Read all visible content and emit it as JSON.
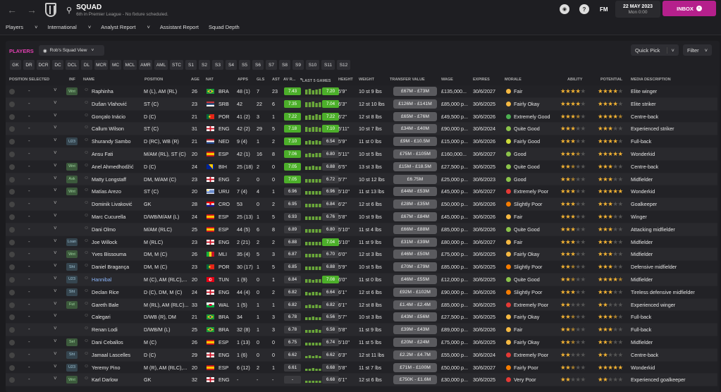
{
  "header": {
    "title": "SQUAD",
    "subtitle": "6th in Premier League - No fixture scheduled.",
    "fm_label": "FM",
    "date": "22 MAY 2023",
    "day_time": "Mon 0:00",
    "inbox": "INBOX"
  },
  "subnav": [
    "Players",
    "International",
    "Analyst Report",
    "Assistant Report",
    "Squad Depth"
  ],
  "toolbar": {
    "players_label": "PLAYERS",
    "view": "Rob's Squad View",
    "quick_pick": "Quick Pick",
    "filter": "Filter"
  },
  "positions": [
    "GK",
    "DR",
    "DCR",
    "DC",
    "DCL",
    "DL",
    "MCR",
    "MC",
    "MCL",
    "AMR",
    "AML",
    "STC",
    "S1",
    "S2",
    "S3",
    "S4",
    "S5",
    "S6",
    "S7",
    "S8",
    "S9",
    "S10",
    "S11",
    "S12"
  ],
  "columns": {
    "pos_selected": "POSITION SELECTED",
    "inf": "INF",
    "name": "NAME",
    "position": "POSITION",
    "age": "AGE",
    "nat": "NAT",
    "apps": "APPS",
    "gls": "GLS",
    "ast": "AST",
    "avr": "AV R...",
    "last5": "LAST 5 GAMES",
    "height": "HEIGHT",
    "weight": "WEIGHT",
    "transfer_value": "TRANSFER VALUE",
    "wage": "WAGE",
    "expires": "EXPIRES",
    "morale": "MORALE",
    "ability": "ABILITY",
    "potential": "POTENTIAL",
    "media_description": "MEDIA DESCRIPTION"
  },
  "colors": {
    "accent": "#b5208c",
    "rating_green": "#4caf2a",
    "rating_gray": "#3a3a3e",
    "star": "#f2b233"
  },
  "players": [
    {
      "sel": "-",
      "inf": "Wnt",
      "name": "Raphinha",
      "pos": "M (L), AM (RL)",
      "age": "26",
      "nat": "BRA",
      "flag": "bra",
      "apps": "48 (1)",
      "gls": "7",
      "ast": "23",
      "avr": "7.43",
      "bars": [
        0.8,
        0.9,
        0.7,
        0.8,
        0.9
      ],
      "l5": "7.20",
      "ht": "5'9\"",
      "wt": "10 st 9 lbs",
      "tv": "£67M - £73M",
      "wage": "£135,000...",
      "exp": "30/6/2027",
      "mor": "Fair",
      "mc": "#f5b942",
      "abil": 4,
      "pot": 4,
      "desc": "Elite winger"
    },
    {
      "sel": "-",
      "inf": "",
      "name": "Dušan Vlahović",
      "pos": "ST (C)",
      "age": "23",
      "nat": "SRB",
      "flag": "srb",
      "apps": "42",
      "gls": "22",
      "ast": "6",
      "avr": "7.35",
      "bars": [
        0.8,
        0.8,
        0.9,
        0.7,
        0.8
      ],
      "l5": "7.04",
      "ht": "6'3\"",
      "wt": "12 st 10 lbs",
      "tv": "£126M - £141M",
      "wage": "£85,000 p...",
      "exp": "30/6/2025",
      "mor": "Fairly Okay",
      "mc": "#f5b942",
      "abil": 4,
      "pot": 4,
      "desc": "Elite striker"
    },
    {
      "sel": "-",
      "inf": "",
      "name": "Gonçalo Inácio",
      "pos": "D (C)",
      "age": "21",
      "nat": "POR",
      "flag": "por",
      "apps": "41 (2)",
      "gls": "3",
      "ast": "1",
      "avr": "7.22",
      "bars": [
        0.7,
        0.8,
        0.7,
        0.9,
        0.8
      ],
      "l5": "7.22",
      "ht": "6'2\"",
      "wt": "12 st 8 lbs",
      "tv": "£65M - £76M",
      "wage": "£49,500 p...",
      "exp": "30/6/2026",
      "mor": "Extremely Good",
      "mc": "#4caf50",
      "abil": 3.5,
      "pot": 4.5,
      "desc": "Centre-back"
    },
    {
      "sel": "-",
      "inf": "",
      "name": "Callum Wilson",
      "pos": "ST (C)",
      "age": "31",
      "nat": "ENG",
      "flag": "eng",
      "apps": "42 (2)",
      "gls": "29",
      "ast": "5",
      "avr": "7.18",
      "bars": [
        0.8,
        0.7,
        0.8,
        0.8,
        0.7
      ],
      "l5": "7.10",
      "ht": "5'11\"",
      "wt": "10 st 7 lbs",
      "tv": "£34M - £40M",
      "wage": "£90,000 p...",
      "exp": "30/6/2024",
      "mor": "Quite Good",
      "mc": "#8bc34a",
      "abil": 3,
      "pot": 3,
      "desc": "Experienced striker"
    },
    {
      "sel": "-",
      "inf": "U23",
      "name": "Shurandy Sambo",
      "pos": "D (RC), WB (R)",
      "age": "21",
      "nat": "NED",
      "flag": "ned",
      "apps": "9 (4)",
      "gls": "1",
      "ast": "2",
      "avr": "7.10",
      "bars": [
        0.6,
        0.7,
        0.6,
        0.7,
        0.6
      ],
      "l5": "6.54",
      "ht": "5'9\"",
      "wt": "11 st 0 lbs",
      "tv": "£9M - £10.5M",
      "wage": "£15,000 p...",
      "exp": "30/6/2026",
      "mor": "Fairly Good",
      "mc": "#cddc39",
      "abil": 3,
      "pot": 4,
      "desc": "Full-back"
    },
    {
      "sel": "-",
      "inf": "",
      "name": "Ansu Fati",
      "pos": "M/AM (RL), ST (C)",
      "age": "20",
      "nat": "ESP",
      "flag": "esp",
      "apps": "42 (1)",
      "gls": "16",
      "ast": "8",
      "avr": "7.06",
      "bars": [
        0.6,
        0.7,
        0.6,
        0.7,
        0.7
      ],
      "l5": "6.80",
      "ht": "5'11\"",
      "wt": "10 st 5 lbs",
      "tv": "£75M - £105M",
      "wage": "£160,000...",
      "exp": "30/6/2027",
      "mor": "Good",
      "mc": "#8bc34a",
      "abil": 3.5,
      "pot": 5,
      "desc": "Wonderkid"
    },
    {
      "sel": "-",
      "inf": "Wnt",
      "name": "Anel Ahmedhodžić",
      "pos": "D (C)",
      "age": "24",
      "nat": "BIH",
      "flag": "bih",
      "apps": "25 (18)",
      "gls": "2",
      "ast": "0",
      "avr": "7.05",
      "bars": [
        0.6,
        0.6,
        0.7,
        0.6,
        0.6
      ],
      "l5": "6.88",
      "ht": "6'5\"",
      "wt": "13 st 3 lbs",
      "tv": "£15M - £18.5M",
      "wage": "£27,500 p...",
      "exp": "30/6/2025",
      "mor": "Quite Good",
      "mc": "#8bc34a",
      "abil": 2.5,
      "pot": 3,
      "desc": "Centre-back"
    },
    {
      "sel": "-",
      "inf": "Ask",
      "name": "Matty Longstaff",
      "pos": "DM, M/AM (C)",
      "age": "23",
      "nat": "ENG",
      "flag": "eng",
      "apps": "2",
      "gls": "0",
      "ast": "0",
      "avr": "7.05",
      "bars": [
        0.6,
        0.6,
        0.6,
        0.6,
        0.6
      ],
      "l5": "6.72",
      "ht": "5'7\"",
      "wt": "10 st 12 lbs",
      "tv": "£6.75M",
      "wage": "£25,000 p...",
      "exp": "30/6/2023",
      "mor": "Good",
      "mc": "#8bc34a",
      "abil": 2.5,
      "pot": 3,
      "desc": "Midfielder"
    },
    {
      "sel": "-",
      "inf": "Wnt",
      "name": "Matías Arezo",
      "pos": "ST (C)",
      "age": "20",
      "nat": "URU",
      "flag": "uru",
      "apps": "7 (4)",
      "gls": "4",
      "ast": "1",
      "avr": "6.96",
      "bars": [
        0.5,
        0.6,
        0.6,
        0.6,
        0.5
      ],
      "l5": "6.96",
      "ht": "5'10\"",
      "wt": "11 st 13 lbs",
      "tv": "£44M - £53M",
      "wage": "£45,000 p...",
      "exp": "30/6/2027",
      "mor": "Extremely Poor",
      "mc": "#e53935",
      "abil": 3,
      "pot": 5,
      "desc": "Wonderkid"
    },
    {
      "sel": "-",
      "inf": "",
      "name": "Dominik Livaković",
      "pos": "GK",
      "age": "28",
      "nat": "CRO",
      "flag": "cro",
      "apps": "53",
      "gls": "0",
      "ast": "2",
      "avr": "6.95",
      "bars": [
        0.5,
        0.6,
        0.5,
        0.6,
        0.6
      ],
      "l5": "6.84",
      "ht": "6'2\"",
      "wt": "12 st 6 lbs",
      "tv": "£28M - £35M",
      "wage": "£50,000 p...",
      "exp": "30/6/2026",
      "mor": "Slightly Poor",
      "mc": "#f57c00",
      "abil": 3,
      "pot": 3,
      "desc": "Goalkeeper"
    },
    {
      "sel": "-",
      "inf": "",
      "name": "Marc Cucurella",
      "pos": "D/WB/M/AM (L)",
      "age": "24",
      "nat": "ESP",
      "flag": "esp",
      "apps": "25 (13)",
      "gls": "1",
      "ast": "5",
      "avr": "6.93",
      "bars": [
        0.5,
        0.5,
        0.6,
        0.5,
        0.6
      ],
      "l5": "6.76",
      "ht": "5'8\"",
      "wt": "10 st 9 lbs",
      "tv": "£67M - £84M",
      "wage": "£45,000 p...",
      "exp": "30/6/2026",
      "mor": "Fair",
      "mc": "#f5b942",
      "abil": 3,
      "pot": 3,
      "desc": "Winger"
    },
    {
      "sel": "-",
      "inf": "",
      "name": "Dani Olmo",
      "pos": "M/AM (RLC)",
      "age": "25",
      "nat": "ESP",
      "flag": "esp",
      "apps": "44 (5)",
      "gls": "6",
      "ast": "8",
      "avr": "6.89",
      "bars": [
        0.5,
        0.5,
        0.5,
        0.6,
        0.5
      ],
      "l5": "6.80",
      "ht": "5'10\"",
      "wt": "11 st 4 lbs",
      "tv": "£66M - £88M",
      "wage": "£85,000 p...",
      "exp": "30/6/2026",
      "mor": "Quite Good",
      "mc": "#8bc34a",
      "abil": 3,
      "pot": 3,
      "desc": "Attacking midfielder"
    },
    {
      "sel": "-",
      "inf": "Loan",
      "name": "Joe Willock",
      "pos": "M (RLC)",
      "age": "23",
      "nat": "ENG",
      "flag": "eng",
      "apps": "2 (21)",
      "gls": "2",
      "ast": "2",
      "avr": "6.88",
      "bars": [
        0.5,
        0.5,
        0.5,
        0.5,
        0.6
      ],
      "l5": "7.04",
      "ht": "5'10\"",
      "wt": "11 st 9 lbs",
      "tv": "£31M - £39M",
      "wage": "£80,000 p...",
      "exp": "30/6/2027",
      "mor": "Fair",
      "mc": "#f5b942",
      "abil": 3,
      "pot": 3,
      "desc": "Midfielder"
    },
    {
      "sel": "-",
      "inf": "Wnt",
      "name": "Yves Bissouma",
      "pos": "DM, M (C)",
      "age": "26",
      "nat": "MLI",
      "flag": "mli",
      "apps": "35 (4)",
      "gls": "5",
      "ast": "3",
      "avr": "6.87",
      "bars": [
        0.5,
        0.5,
        0.5,
        0.5,
        0.5
      ],
      "l5": "6.70",
      "ht": "6'0\"",
      "wt": "12 st 3 lbs",
      "tv": "£46M - £50M",
      "wage": "£75,000 p...",
      "exp": "30/6/2025",
      "mor": "Fairly Okay",
      "mc": "#f5b942",
      "abil": 3,
      "pot": 3,
      "desc": "Midfielder"
    },
    {
      "sel": "-",
      "inf": "Sht",
      "name": "Daniel Bragança",
      "pos": "DM, M (C)",
      "age": "23",
      "nat": "POR",
      "flag": "por",
      "apps": "30 (17)",
      "gls": "1",
      "ast": "5",
      "avr": "6.85",
      "bars": [
        0.5,
        0.5,
        0.5,
        0.5,
        0.5
      ],
      "l5": "6.88",
      "ht": "5'9\"",
      "wt": "10 st 5 lbs",
      "tv": "£70M - £79M",
      "wage": "£85,000 p...",
      "exp": "30/6/2025",
      "mor": "Slightly Poor",
      "mc": "#f57c00",
      "abil": 2.5,
      "pot": 3,
      "desc": "Defensive midfielder"
    },
    {
      "sel": "-",
      "inf": "U23",
      "name": "Hannibal",
      "pos": "M (C), AM (RLC),...",
      "age": "20",
      "nat": "TUN",
      "flag": "tun",
      "apps": "1 (9)",
      "gls": "0",
      "ast": "1",
      "avr": "6.84",
      "bars": [
        0.5,
        0.5,
        0.4,
        0.5,
        0.5
      ],
      "l5": "7.08",
      "ht": "6'0\"",
      "wt": "11 st 0 lbs",
      "tv": "£46M - £55M",
      "wage": "£12,000 p...",
      "exp": "30/6/2025",
      "mor": "Quite Good",
      "mc": "#8bc34a",
      "abil": 2.5,
      "pot": 4.5,
      "desc": "Midfielder",
      "hl": true
    },
    {
      "sel": "-",
      "inf": "Sht",
      "name": "Declan Rice",
      "pos": "D (C), DM, M (C)",
      "age": "24",
      "nat": "ENG",
      "flag": "eng",
      "apps": "44 (4)",
      "gls": "0",
      "ast": "2",
      "avr": "6.82",
      "bars": [
        0.5,
        0.4,
        0.5,
        0.5,
        0.4
      ],
      "l5": "6.64",
      "ht": "6'1\"",
      "wt": "12 st 6 lbs",
      "tv": "£92M - £102M",
      "wage": "£90,000 p...",
      "exp": "30/6/2026",
      "mor": "Slightly Poor",
      "mc": "#f57c00",
      "abil": 3,
      "pot": 3,
      "desc": "Tireless defensive midfielder"
    },
    {
      "sel": "-",
      "inf": "Fut",
      "name": "Gareth Bale",
      "pos": "M (RL), AM (RLC)...",
      "age": "33",
      "nat": "WAL",
      "flag": "wal",
      "apps": "1 (5)",
      "gls": "1",
      "ast": "1",
      "avr": "6.82",
      "bars": [
        0.4,
        0.5,
        0.4,
        0.5,
        0.4
      ],
      "l5": "6.82",
      "ht": "6'1\"",
      "wt": "12 st 8 lbs",
      "tv": "£1.4M - £2.4M",
      "wage": "£85,000 p...",
      "exp": "30/6/2025",
      "mor": "Extremely Poor",
      "mc": "#e53935",
      "abil": 2,
      "pot": 2,
      "desc": "Experienced winger"
    },
    {
      "sel": "-",
      "inf": "",
      "name": "Calegari",
      "pos": "D/WB (R), DM",
      "age": "21",
      "nat": "BRA",
      "flag": "bra",
      "apps": "34",
      "gls": "1",
      "ast": "3",
      "avr": "6.78",
      "bars": [
        0.4,
        0.4,
        0.5,
        0.4,
        0.4
      ],
      "l5": "6.56",
      "ht": "5'7\"",
      "wt": "10 st 3 lbs",
      "tv": "£43M - £56M",
      "wage": "£27,500 p...",
      "exp": "30/6/2025",
      "mor": "Fairly Okay",
      "mc": "#f5b942",
      "abil": 2.5,
      "pot": 3.5,
      "desc": "Full-back"
    },
    {
      "sel": "-",
      "inf": "",
      "name": "Renan Lodi",
      "pos": "D/WB/M (L)",
      "age": "25",
      "nat": "BRA",
      "flag": "bra",
      "apps": "32 (8)",
      "gls": "1",
      "ast": "3",
      "avr": "6.78",
      "bars": [
        0.4,
        0.4,
        0.4,
        0.5,
        0.4
      ],
      "l5": "6.58",
      "ht": "5'8\"",
      "wt": "11 st 9 lbs",
      "tv": "£39M - £43M",
      "wage": "£89,000 p...",
      "exp": "30/6/2026",
      "mor": "Fair",
      "mc": "#f5b942",
      "abil": 2.5,
      "pot": 3,
      "desc": "Full-back"
    },
    {
      "sel": "-",
      "inf": "Sel",
      "name": "Dani Ceballos",
      "pos": "M (C)",
      "age": "26",
      "nat": "ESP",
      "flag": "esp",
      "apps": "1 (13)",
      "gls": "0",
      "ast": "0",
      "avr": "6.75",
      "bars": [
        0.4,
        0.4,
        0.4,
        0.4,
        0.4
      ],
      "l5": "6.74",
      "ht": "5'10\"",
      "wt": "11 st 5 lbs",
      "tv": "£20M - £24M",
      "wage": "£75,000 p...",
      "exp": "30/6/2025",
      "mor": "Fairly Okay",
      "mc": "#f5b942",
      "abil": 2.5,
      "pot": 2.5,
      "desc": "Midfielder"
    },
    {
      "sel": "-",
      "inf": "Sht",
      "name": "Jamaal Lascelles",
      "pos": "D (C)",
      "age": "29",
      "nat": "ENG",
      "flag": "eng",
      "apps": "1 (6)",
      "gls": "0",
      "ast": "0",
      "avr": "6.62",
      "bars": [
        0.3,
        0.4,
        0.3,
        0.4,
        0.3
      ],
      "l5": "6.62",
      "ht": "6'3\"",
      "wt": "12 st 11 lbs",
      "tv": "£2.2M - £4.7M",
      "wage": "£55,000 p...",
      "exp": "30/6/2024",
      "mor": "Extremely Poor",
      "mc": "#e53935",
      "abil": 2,
      "pot": 2,
      "desc": "Centre-back"
    },
    {
      "sel": "-",
      "inf": "U23",
      "name": "Yeremy Pino",
      "pos": "M (R), AM (RLC),...",
      "age": "20",
      "nat": "ESP",
      "flag": "esp",
      "apps": "6 (12)",
      "gls": "2",
      "ast": "1",
      "avr": "6.61",
      "bars": [
        0.3,
        0.3,
        0.4,
        0.3,
        0.3
      ],
      "l5": "6.68",
      "ht": "5'8\"",
      "wt": "11 st 7 lbs",
      "tv": "£71M - £100M",
      "wage": "£50,000 p...",
      "exp": "30/6/2027",
      "mor": "Fairly Poor",
      "mc": "#f57c00",
      "abil": 2.5,
      "pot": 5,
      "desc": "Wonderkid"
    },
    {
      "sel": "-",
      "inf": "Wnt",
      "name": "Karl Darlow",
      "pos": "GK",
      "age": "32",
      "nat": "ENG",
      "flag": "eng",
      "apps": "-",
      "gls": "-",
      "ast": "-",
      "avr": "-",
      "bars": [
        0.3,
        0.3,
        0.3,
        0.3,
        0.3
      ],
      "l5": "6.68",
      "ht": "6'1\"",
      "wt": "12 st 6 lbs",
      "tv": "£750K - £1.6M",
      "wage": "£30,000 p...",
      "exp": "30/6/2025",
      "mor": "Very Poor",
      "mc": "#e53935",
      "abil": 2,
      "pot": 2,
      "desc": "Experienced goalkeeper"
    }
  ]
}
